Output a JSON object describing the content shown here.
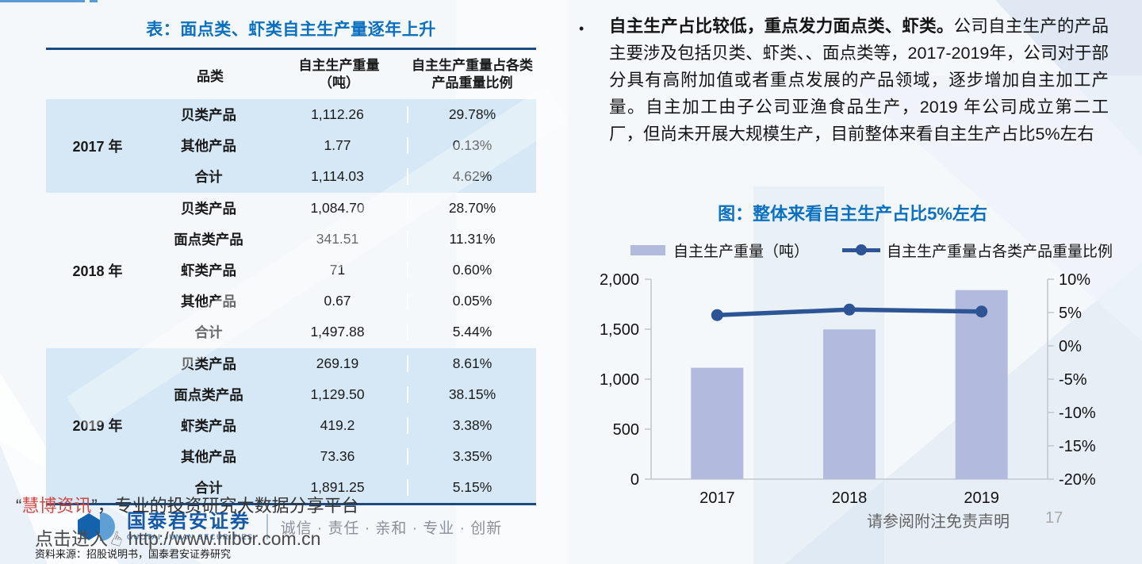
{
  "table": {
    "title": "表：面点类、虾类自主生产量逐年上升",
    "columns": {
      "category": "品类",
      "weight_l1": "自主生产重量",
      "weight_l2": "（吨）",
      "ratio_l1": "自主生产重量占各类",
      "ratio_l2": "产品重量比例"
    },
    "groups": [
      {
        "year": "2017 年",
        "shaded": true,
        "rows": [
          {
            "category": "贝类产品",
            "weight": "1,112.26",
            "ratio": "29.78%"
          },
          {
            "category": "其他产品",
            "weight": "1.77",
            "ratio": "0.13%"
          },
          {
            "category": "合计",
            "weight": "1,114.03",
            "ratio": "4.62%"
          }
        ]
      },
      {
        "year": "2018 年",
        "shaded": false,
        "rows": [
          {
            "category": "贝类产品",
            "weight": "1,084.70",
            "ratio": "28.70%"
          },
          {
            "category": "面点类产品",
            "weight": "341.51",
            "ratio": "11.31%"
          },
          {
            "category": "虾类产品",
            "weight": "71",
            "ratio": "0.60%"
          },
          {
            "category": "其他产品",
            "weight": "0.67",
            "ratio": "0.05%"
          },
          {
            "category": "合计",
            "weight": "1,497.88",
            "ratio": "5.44%"
          }
        ]
      },
      {
        "year": "2019 年",
        "shaded": true,
        "rows": [
          {
            "category": "贝类产品",
            "weight": "269.19",
            "ratio": "8.61%"
          },
          {
            "category": "面点类产品",
            "weight": "1,129.50",
            "ratio": "38.15%"
          },
          {
            "category": "虾类产品",
            "weight": "419.2",
            "ratio": "3.38%"
          },
          {
            "category": "其他产品",
            "weight": "73.36",
            "ratio": "3.35%"
          },
          {
            "category": "合计",
            "weight": "1,891.25",
            "ratio": "5.15%"
          }
        ]
      }
    ]
  },
  "bullet": {
    "marker": "•",
    "lead": "自主生产占比较低，重点发力面点类、虾类。",
    "body": "公司自主生产的产品主要涉及包括贝类、虾类、、面点类等，2017-2019年，公司对于部分具有高附加值或者重点发展的产品领域，逐步增加自主加工产量。自主加工由子公司亚渔食品生产，2019 年公司成立第二工厂，但尚未开展大规模生产，目前整体来看自主生产占比5%左右"
  },
  "chart_data": {
    "type": "bar",
    "title": "图：整体来看自主生产占比5%左右",
    "categories": [
      "2017",
      "2018",
      "2019"
    ],
    "series": [
      {
        "name": "自主生产重量（吨）",
        "type": "bar",
        "axis": "left",
        "values": [
          1114.03,
          1497.88,
          1891.25
        ]
      },
      {
        "name": "自主生产重量占各类产品重量比例",
        "type": "line",
        "axis": "right",
        "unit": "%",
        "values": [
          4.62,
          5.44,
          5.15
        ]
      }
    ],
    "left_axis": {
      "min": 0,
      "max": 2000,
      "step": 500,
      "tick_labels": [
        "0",
        "500",
        "1,000",
        "1,500",
        "2,000"
      ]
    },
    "right_axis": {
      "min": -20,
      "max": 10,
      "step": 5,
      "tick_labels": [
        "-20%",
        "-15%",
        "-10%",
        "-5%",
        "0%",
        "5%",
        "10%"
      ]
    },
    "legend_position": "top",
    "grid": false,
    "colors": {
      "bar": "#b2bbde",
      "line": "#2d5494",
      "axis": "#c2c8ce"
    }
  },
  "footer": {
    "watermark_line1": {
      "quote_open": "“",
      "brand": "慧博资讯",
      "rest": "”，专业的投资研究大数据分享平台"
    },
    "logo": {
      "cn": "国泰君安证券",
      "en": "GUOTAI JUNAN SECURITIES"
    },
    "tagline": "诚信 · 责任 · 亲和 · 专业 · 创新",
    "watermark_line2": {
      "prefix": "点击进入",
      "url": "http://www.hibor.com.cn"
    },
    "source": "资料来源：招股说明书，国泰君安证券研究",
    "disclaimer": "请参阅附注免责声明",
    "page_no": "17"
  },
  "icons": {
    "hand": "☞",
    "legend_bar_swatch": "bar-swatch",
    "legend_line_marker": "line-marker"
  }
}
